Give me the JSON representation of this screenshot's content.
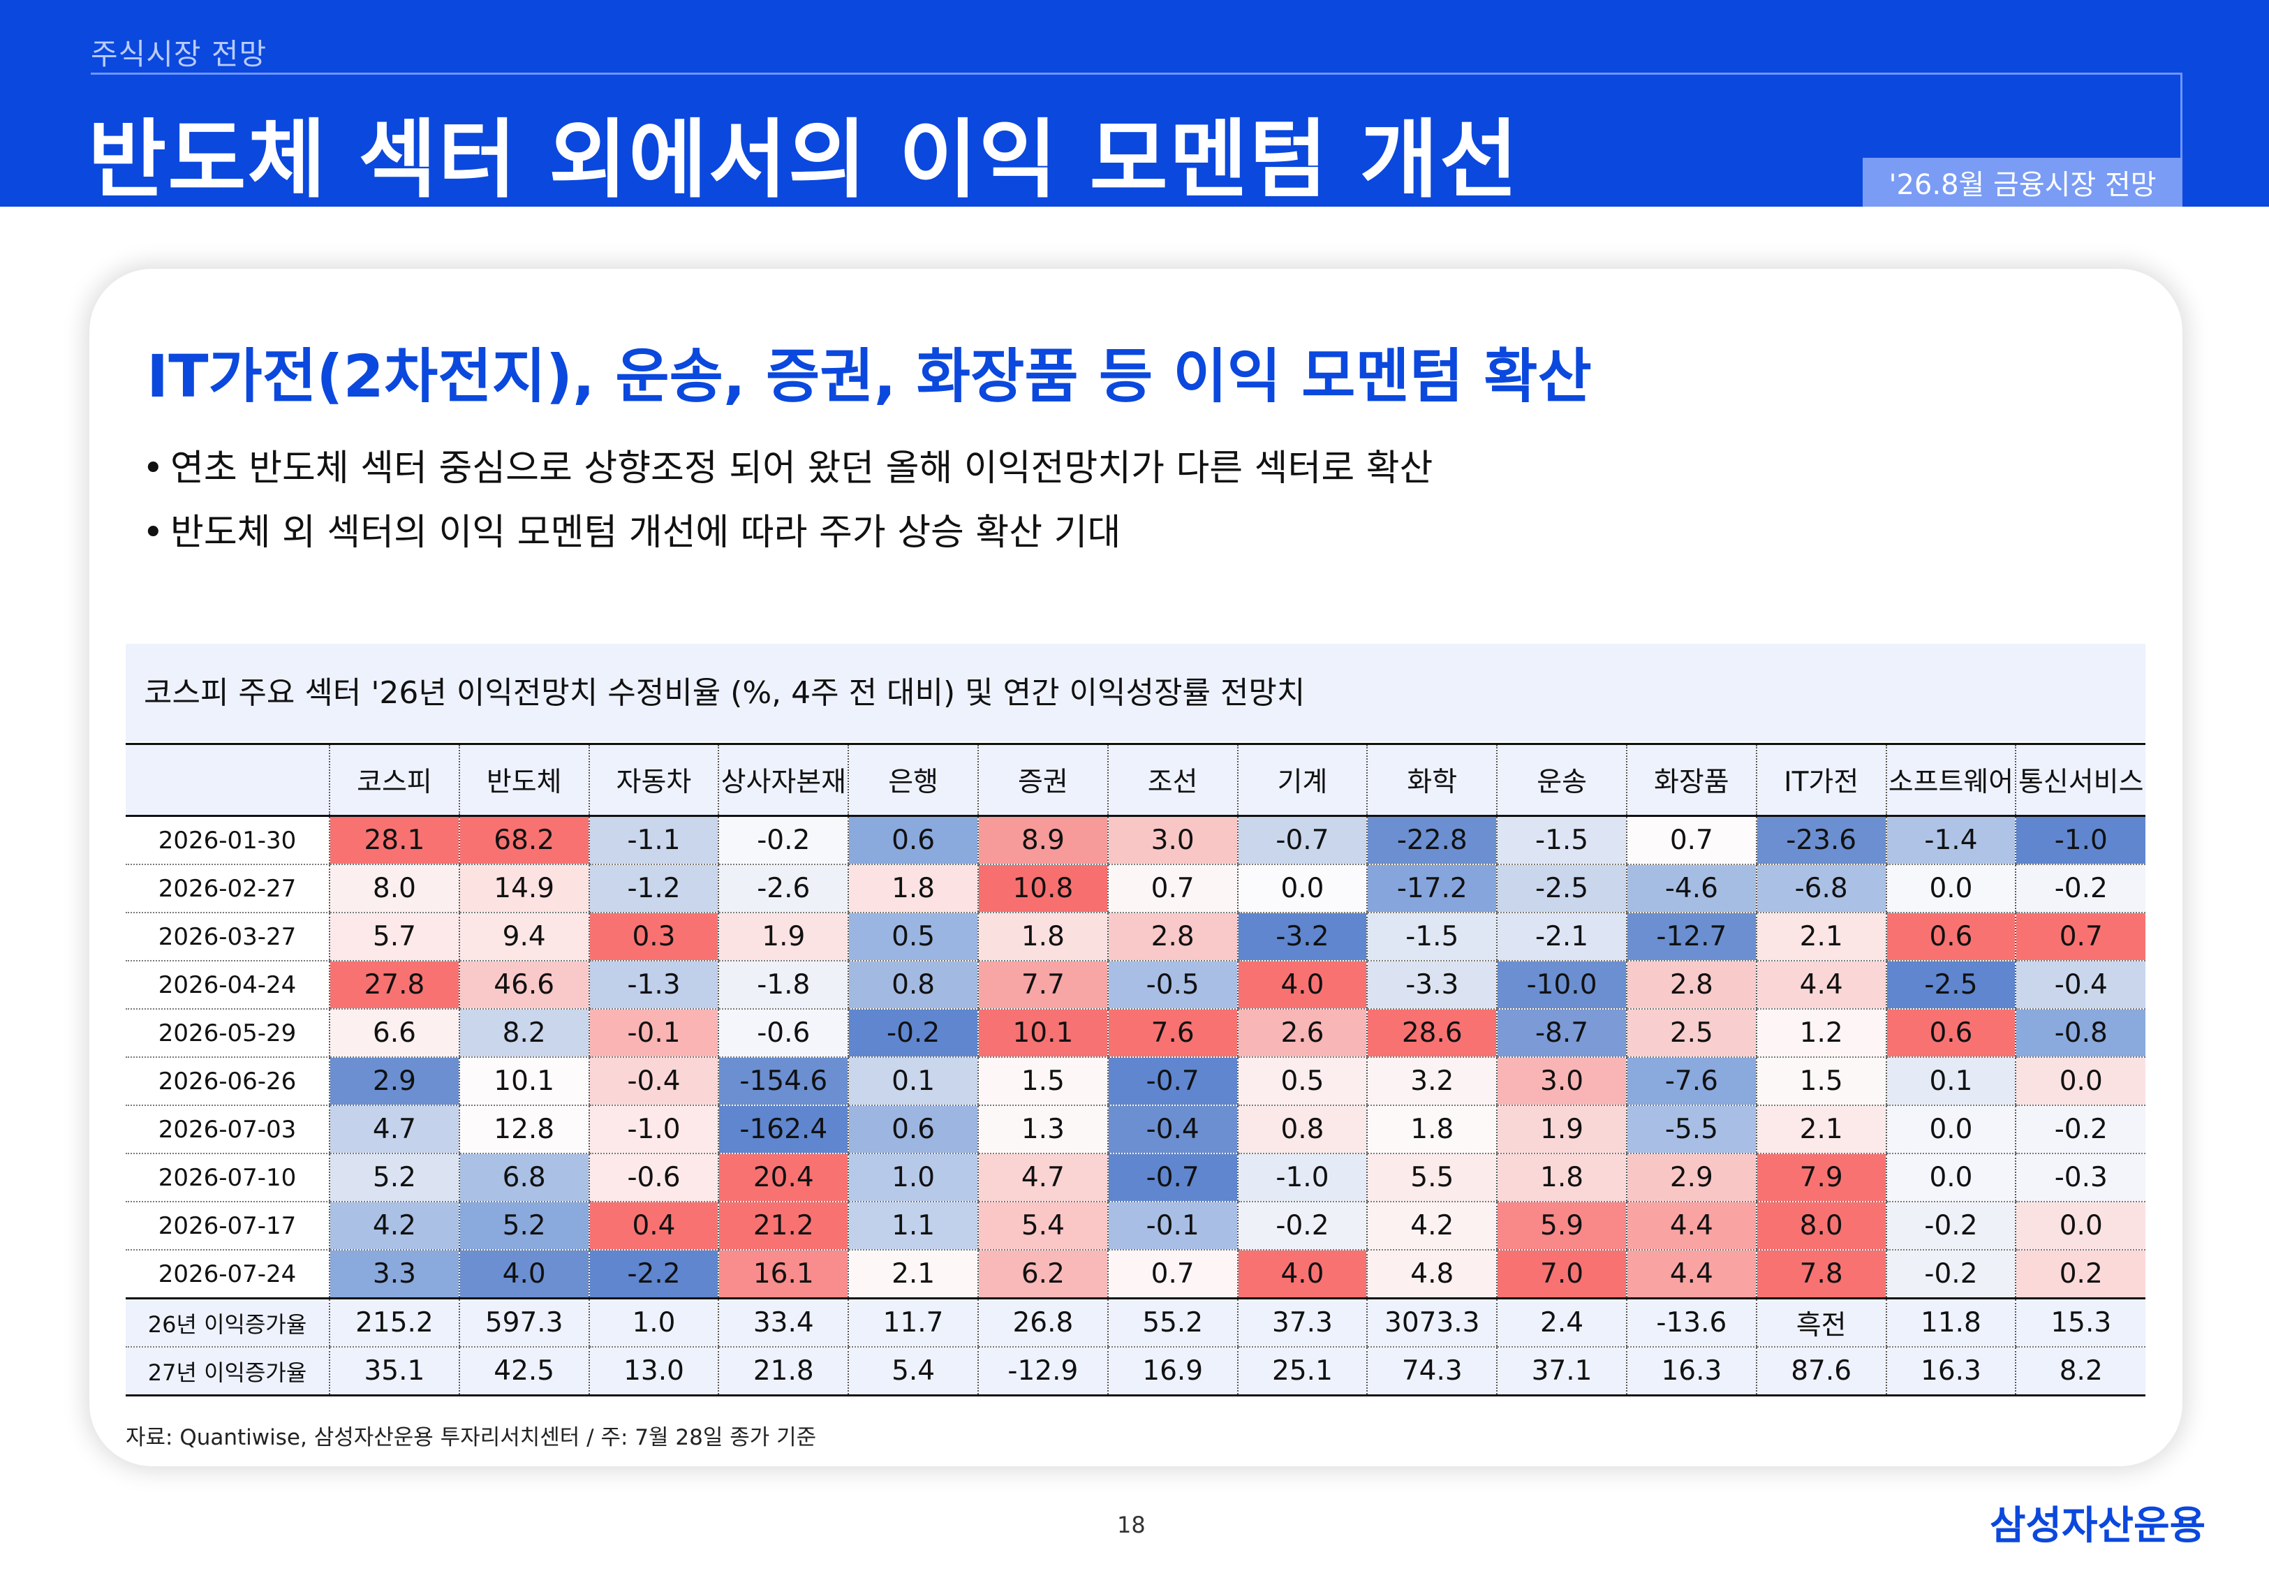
{
  "header": {
    "category": "주식시장 전망",
    "title": "반도체 섹터 외에서의 이익 모멘텀 개선",
    "edition": "'26.8월 금융시장 전망"
  },
  "card": {
    "subtitle": "IT가전(2차전지), 운송, 증권, 화장품 등 이익 모멘텀 확산",
    "bullets": [
      "연초 반도체 섹터 중심으로 상향조정 되어 왔던 올해 이익전망치가 다른 섹터로 확산",
      "반도체 외 섹터의 이익 모멘텀 개선에 따라 주가 상승 확산 기대"
    ],
    "table_caption": "코스피 주요 섹터 '26년 이익전망치 수정비율 (%, 4주 전 대비) 및 연간 이익성장률 전망치"
  },
  "chart_data": {
    "type": "table",
    "title": "코스피 주요 섹터 '26년 이익전망치 수정비율 (%, 4주 전 대비) 및 연간 이익성장률 전망치",
    "columns": [
      "",
      "코스피",
      "반도체",
      "자동차",
      "상사자본재",
      "은행",
      "증권",
      "조선",
      "기계",
      "화학",
      "운송",
      "화장품",
      "IT가전",
      "소프트웨어",
      "통신서비스"
    ],
    "rows": [
      {
        "label": "2026-01-30",
        "values": [
          "28.1",
          "68.2",
          "-1.1",
          "-0.2",
          "0.6",
          "8.9",
          "3.0",
          "-0.7",
          "-22.8",
          "-1.5",
          "0.7",
          "-23.6",
          "-1.4",
          "-1.0"
        ]
      },
      {
        "label": "2026-02-27",
        "values": [
          "8.0",
          "14.9",
          "-1.2",
          "-2.6",
          "1.8",
          "10.8",
          "0.7",
          "0.0",
          "-17.2",
          "-2.5",
          "-4.6",
          "-6.8",
          "0.0",
          "-0.2"
        ]
      },
      {
        "label": "2026-03-27",
        "values": [
          "5.7",
          "9.4",
          "0.3",
          "1.9",
          "0.5",
          "1.8",
          "2.8",
          "-3.2",
          "-1.5",
          "-2.1",
          "-12.7",
          "2.1",
          "0.6",
          "0.7"
        ]
      },
      {
        "label": "2026-04-24",
        "values": [
          "27.8",
          "46.6",
          "-1.3",
          "-1.8",
          "0.8",
          "7.7",
          "-0.5",
          "4.0",
          "-3.3",
          "-10.0",
          "2.8",
          "4.4",
          "-2.5",
          "-0.4"
        ]
      },
      {
        "label": "2026-05-29",
        "values": [
          "6.6",
          "8.2",
          "-0.1",
          "-0.6",
          "-0.2",
          "10.1",
          "7.6",
          "2.6",
          "28.6",
          "-8.7",
          "2.5",
          "1.2",
          "0.6",
          "-0.8"
        ]
      },
      {
        "label": "2026-06-26",
        "values": [
          "2.9",
          "10.1",
          "-0.4",
          "-154.6",
          "0.1",
          "1.5",
          "-0.7",
          "0.5",
          "3.2",
          "3.0",
          "-7.6",
          "1.5",
          "0.1",
          "0.0"
        ]
      },
      {
        "label": "2026-07-03",
        "values": [
          "4.7",
          "12.8",
          "-1.0",
          "-162.4",
          "0.6",
          "1.3",
          "-0.4",
          "0.8",
          "1.8",
          "1.9",
          "-5.5",
          "2.1",
          "0.0",
          "-0.2"
        ]
      },
      {
        "label": "2026-07-10",
        "values": [
          "5.2",
          "6.8",
          "-0.6",
          "20.4",
          "1.0",
          "4.7",
          "-0.7",
          "-1.0",
          "5.5",
          "1.8",
          "2.9",
          "7.9",
          "0.0",
          "-0.3"
        ]
      },
      {
        "label": "2026-07-17",
        "values": [
          "4.2",
          "5.2",
          "0.4",
          "21.2",
          "1.1",
          "5.4",
          "-0.1",
          "-0.2",
          "4.2",
          "5.9",
          "4.4",
          "8.0",
          "-0.2",
          "0.0"
        ]
      },
      {
        "label": "2026-07-24",
        "values": [
          "3.3",
          "4.0",
          "-2.2",
          "16.1",
          "2.1",
          "6.2",
          "0.7",
          "4.0",
          "4.8",
          "7.0",
          "4.4",
          "7.8",
          "-0.2",
          "0.2"
        ]
      }
    ],
    "summary_rows": [
      {
        "label": "26년 이익증가율",
        "values": [
          "215.2",
          "597.3",
          "1.0",
          "33.4",
          "11.7",
          "26.8",
          "55.2",
          "37.3",
          "3073.3",
          "2.4",
          "-13.6",
          "흑전",
          "11.8",
          "15.3"
        ]
      },
      {
        "label": "27년 이익증가율",
        "values": [
          "35.1",
          "42.5",
          "13.0",
          "21.8",
          "5.4",
          "-12.9",
          "16.9",
          "25.1",
          "74.3",
          "37.1",
          "16.3",
          "87.6",
          "16.3",
          "8.2"
        ]
      }
    ],
    "cell_colors": [
      [
        "#f87272",
        "#f87272",
        "#c9d6ec",
        "#f7f8fc",
        "#8aa9dd",
        "#f79a9a",
        "#f9c6c6",
        "#c9d6ec",
        "#6b8fd1",
        "#dde5f4",
        "#fdfbfc",
        "#6b8fd1",
        "#aec3e6",
        "#5f86cf"
      ],
      [
        "#fcefef",
        "#fde2e2",
        "#c9d6ec",
        "#eef1f8",
        "#fce2e2",
        "#f76f6f",
        "#fdf6f7",
        "#fbfbfd",
        "#86a5dc",
        "#c9d6ec",
        "#a6bde3",
        "#aac0e5",
        "#f7f8fc",
        "#f3f5fb"
      ],
      [
        "#fde9ea",
        "#fde6e6",
        "#f87272",
        "#fce3e3",
        "#9bb5e2",
        "#fbe0e0",
        "#f9c8c8",
        "#5f86cf",
        "#e0e7f4",
        "#dde5f4",
        "#6b8fd1",
        "#fbe5e5",
        "#f87272",
        "#f87272"
      ],
      [
        "#f87272",
        "#f9c9c9",
        "#c0cfea",
        "#eef1f8",
        "#a2bae2",
        "#f8a5a5",
        "#a8bee5",
        "#f87272",
        "#dbe3f2",
        "#6b8fd1",
        "#f9caca",
        "#fbd6d6",
        "#5f86cf",
        "#c9d6ec"
      ],
      [
        "#fcf0f1",
        "#c9d6ec",
        "#fab4b4",
        "#f4f6fb",
        "#5f86cf",
        "#f77272",
        "#f87272",
        "#f9b6b6",
        "#f87272",
        "#7b9ad6",
        "#f9cece",
        "#fdf5f6",
        "#f87272",
        "#8aa9dd"
      ],
      [
        "#6b8fd1",
        "#fdfbfb",
        "#fbd6d6",
        "#6b8fd1",
        "#c9d6ec",
        "#fdf7f7",
        "#5f86cf",
        "#fceeee",
        "#fcf4f4",
        "#f9b5b5",
        "#8aa9dd",
        "#fdf8f8",
        "#e4ebf6",
        "#fbe2e2"
      ],
      [
        "#c4d2eb",
        "#fdfbfb",
        "#fde9ea",
        "#5f86cf",
        "#9cb5e1",
        "#fdf8f8",
        "#6b8fd1",
        "#fbe8e8",
        "#fdf9f9",
        "#fad7d7",
        "#a8bee5",
        "#fce9e9",
        "#f4f6fb",
        "#f3f5fb"
      ],
      [
        "#dbe3f2",
        "#aac0e5",
        "#fde9ea",
        "#f87272",
        "#b7c9e9",
        "#fad3d3",
        "#5f86cf",
        "#e4ebf6",
        "#fcebeb",
        "#fad8d8",
        "#f9c6c6",
        "#f87272",
        "#f4f6fb",
        "#f3f5fb"
      ],
      [
        "#aac0e5",
        "#8aa9dd",
        "#f87272",
        "#f87272",
        "#c2d1eb",
        "#fac6c6",
        "#a8bee5",
        "#eef1f8",
        "#fcf2f2",
        "#f98888",
        "#f9a3a3",
        "#f87272",
        "#eef1f8",
        "#fbe2e2"
      ],
      [
        "#8aa9dd",
        "#6b8fd1",
        "#5f86cf",
        "#f98c8c",
        "#fdf7f7",
        "#f9b9b9",
        "#fdf5f6",
        "#f87272",
        "#fcf0f0",
        "#f87272",
        "#f9a3a3",
        "#f87272",
        "#eef1f8",
        "#fbd9d9"
      ]
    ]
  },
  "footer": {
    "source": "자료: Quantiwise, 삼성자산운용 투자리서치센터 / 주: 7월 28일 종가 기준",
    "page_number": "18",
    "logo": "삼성자산운용"
  }
}
